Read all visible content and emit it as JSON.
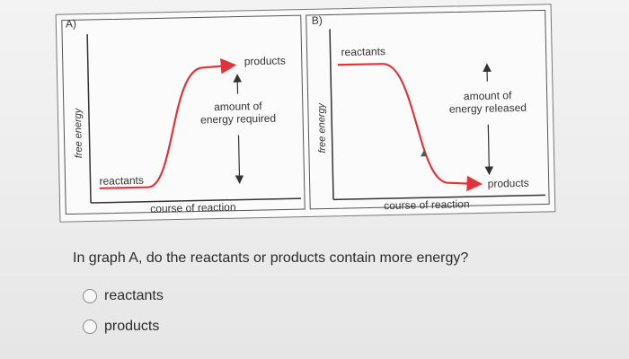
{
  "figure": {
    "panel_a": {
      "label": "A)",
      "ylabel": "free energy",
      "xlabel": "course of reaction",
      "reactants_label": "reactants",
      "products_label": "products",
      "annotation_line1": "amount of",
      "annotation_line2": "energy required"
    },
    "panel_b": {
      "label": "B)",
      "ylabel": "free energy",
      "xlabel": "course of reaction",
      "reactants_label": "reactants",
      "products_label": "products",
      "annotation_line1": "amount of",
      "annotation_line2": "energy released"
    },
    "colors": {
      "curve": "#e0343c",
      "axis": "#333333"
    }
  },
  "question": {
    "text": "In graph A, do the reactants or products contain more energy?",
    "options": [
      {
        "label": "reactants",
        "selected": false
      },
      {
        "label": "products",
        "selected": false
      }
    ]
  }
}
